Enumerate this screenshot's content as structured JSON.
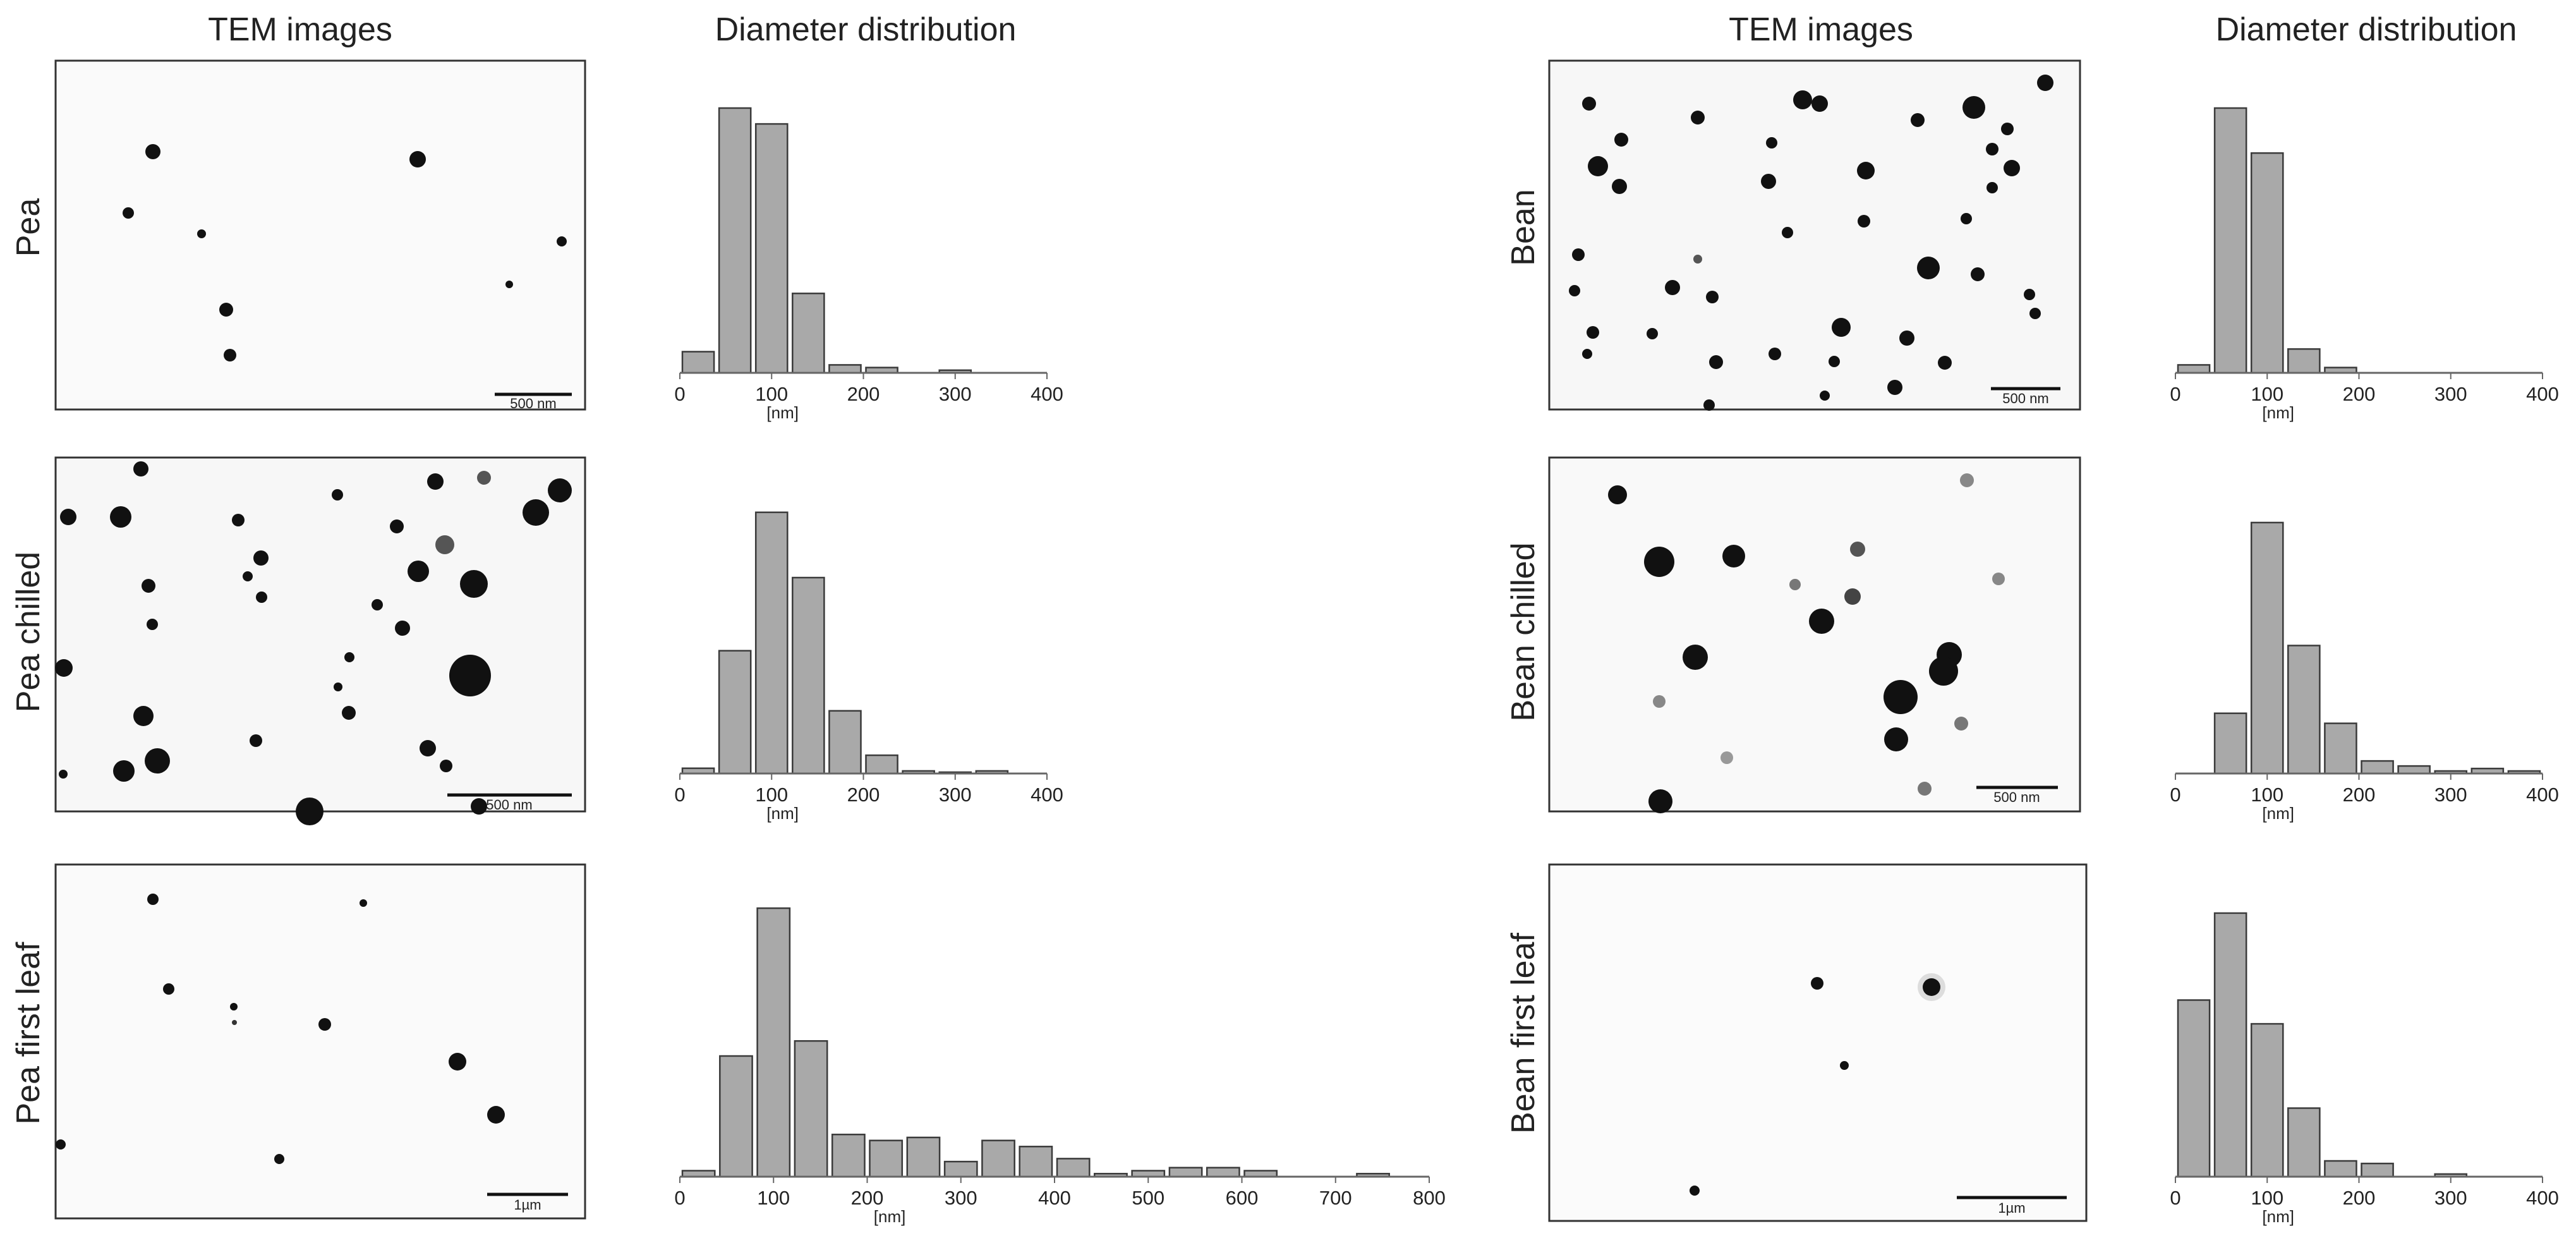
{
  "columns": {
    "left_tem": "TEM images",
    "left_dist": "Diameter distribution",
    "right_tem": "TEM images",
    "right_dist": "Diameter distribution"
  },
  "panels": [
    {
      "label": "Pea",
      "scale_bar": "500 nm"
    },
    {
      "label": "Pea chilled",
      "scale_bar": "500 nm"
    },
    {
      "label": "Pea first leaf",
      "scale_bar": "1µm"
    },
    {
      "label": "Bean",
      "scale_bar": "500 nm"
    },
    {
      "label": "Bean chilled",
      "scale_bar": "500 nm"
    },
    {
      "label": "Bean first leaf",
      "scale_bar": "1µm"
    }
  ],
  "colors": {
    "bar_fill": "#a9a9a9",
    "bar_stroke": "#3a3a3a",
    "particle": "#111111"
  },
  "chart_data": [
    {
      "type": "bar",
      "title": "Pea",
      "xlabel": "[nm]",
      "ylabel": "",
      "bin_width": 40,
      "bin_centers": [
        20,
        60,
        100,
        140,
        180,
        220,
        260,
        300
      ],
      "values": [
        8,
        100,
        94,
        30,
        3,
        2,
        0,
        1
      ],
      "xticks": [
        "0",
        "100",
        "200",
        "300",
        "400"
      ],
      "xlim": [
        0,
        400
      ],
      "ylim": [
        0,
        105
      ]
    },
    {
      "type": "bar",
      "title": "Pea chilled",
      "xlabel": "[nm]",
      "ylabel": "",
      "bin_width": 40,
      "bin_centers": [
        20,
        60,
        100,
        140,
        180,
        220,
        260,
        300,
        340
      ],
      "values": [
        2,
        47,
        100,
        75,
        24,
        7,
        1,
        0.5,
        1
      ],
      "xticks": [
        "0",
        "100",
        "200",
        "300",
        "400"
      ],
      "xlim": [
        0,
        400
      ],
      "ylim": [
        0,
        105
      ]
    },
    {
      "type": "bar",
      "title": "Pea first leaf",
      "xlabel": "[nm]",
      "ylabel": "",
      "bin_width": 40,
      "bin_centers": [
        20,
        60,
        100,
        140,
        180,
        220,
        260,
        300,
        340,
        380,
        420,
        460,
        500,
        540,
        580,
        620,
        660,
        700,
        740
      ],
      "values": [
        2,
        40,
        89,
        45,
        14,
        12,
        13,
        5,
        12,
        10,
        6,
        1,
        2,
        3,
        3,
        2,
        0,
        0,
        1
      ],
      "xticks": [
        "0",
        "100",
        "200",
        "300",
        "400",
        "500",
        "600",
        "700",
        "800"
      ],
      "xlim": [
        0,
        800
      ],
      "ylim": [
        0,
        93
      ]
    },
    {
      "type": "bar",
      "title": "Bean",
      "xlabel": "[nm]",
      "ylabel": "",
      "bin_width": 40,
      "bin_centers": [
        20,
        60,
        100,
        140,
        180
      ],
      "values": [
        3,
        100,
        83,
        9,
        2
      ],
      "xticks": [
        "0",
        "100",
        "200",
        "300",
        "400"
      ],
      "xlim": [
        0,
        400
      ],
      "ylim": [
        0,
        105
      ]
    },
    {
      "type": "bar",
      "title": "Bean chilled",
      "xlabel": "[nm]",
      "ylabel": "",
      "bin_width": 40,
      "bin_centers": [
        60,
        100,
        140,
        180,
        220,
        260,
        300,
        340,
        380
      ],
      "values": [
        24,
        100,
        51,
        20,
        5,
        3,
        1,
        2,
        1
      ],
      "xticks": [
        "0",
        "100",
        "200",
        "300",
        "400"
      ],
      "xlim": [
        0,
        400
      ],
      "ylim": [
        0,
        105
      ]
    },
    {
      "type": "bar",
      "title": "Bean first leaf",
      "xlabel": "[nm]",
      "ylabel": "",
      "bin_width": 40,
      "bin_centers": [
        20,
        60,
        100,
        140,
        180,
        220,
        300
      ],
      "values": [
        67,
        100,
        58,
        26,
        6,
        5,
        1
      ],
      "xticks": [
        "0",
        "100",
        "200",
        "300",
        "400"
      ],
      "xlim": [
        0,
        400
      ],
      "ylim": [
        0,
        105
      ]
    }
  ]
}
